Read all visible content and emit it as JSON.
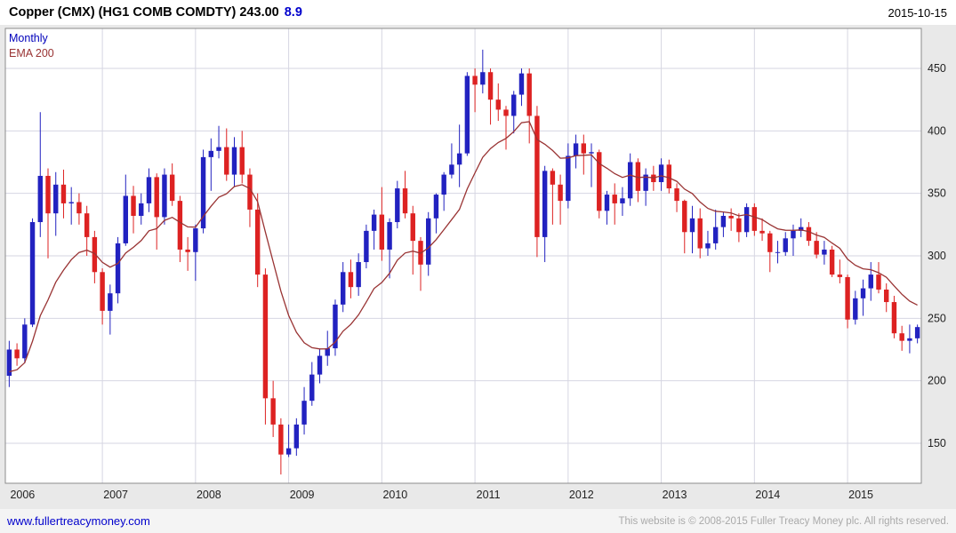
{
  "header": {
    "title": "Copper (CMX) (HG1 COMB COMDTY) 243.00",
    "change": "8.9",
    "date": "2015-10-15"
  },
  "legend": {
    "timeframe": "Monthly",
    "overlay": "EMA 200"
  },
  "footer": {
    "site_link": "www.fullertreacymoney.com",
    "copyright": "This website is © 2008-2015 Fuller Treacy Money plc. All rights reserved."
  },
  "colors": {
    "up": "#2222c0",
    "down": "#dd2222",
    "ema": "#993333",
    "grid": "#d6d6e2",
    "plot_border": "#8c8c8c",
    "axis_text": "#222222",
    "chart_bg": "#e9e9e9",
    "plot_bg": "#ffffff",
    "title_accent": "#0000cc",
    "legend_timeframe": "#0000bb",
    "link": "#0000cc",
    "copyright_text": "#aaaaaa"
  },
  "chart_data": {
    "type": "candlestick",
    "title": "Copper (CMX) (HG1 COMB COMDTY)",
    "last_price": 243.0,
    "change": 8.9,
    "date": "2015-10-15",
    "timeframe": "Monthly",
    "overlay": "EMA 200",
    "ylim": [
      118,
      482
    ],
    "yticks": [
      150,
      200,
      250,
      300,
      350,
      400,
      450
    ],
    "x_years": [
      2006,
      2007,
      2008,
      2009,
      2010,
      2011,
      2012,
      2013,
      2014,
      2015
    ],
    "prev_close": 204,
    "ohlc_fields": [
      "month",
      "open",
      "high",
      "low",
      "close"
    ],
    "ohlc": [
      [
        "2006-01",
        204,
        232,
        195,
        225
      ],
      [
        "2006-02",
        225,
        230,
        212,
        218
      ],
      [
        "2006-03",
        218,
        250,
        214,
        245
      ],
      [
        "2006-04",
        245,
        330,
        243,
        327
      ],
      [
        "2006-05",
        327,
        415,
        315,
        364
      ],
      [
        "2006-06",
        364,
        370,
        298,
        334
      ],
      [
        "2006-07",
        334,
        367,
        316,
        357
      ],
      [
        "2006-08",
        357,
        369,
        330,
        342
      ],
      [
        "2006-09",
        342,
        355,
        325,
        343
      ],
      [
        "2006-10",
        343,
        350,
        325,
        334
      ],
      [
        "2006-11",
        334,
        340,
        300,
        315
      ],
      [
        "2006-12",
        315,
        320,
        278,
        287
      ],
      [
        "2007-01",
        287,
        290,
        245,
        256
      ],
      [
        "2007-02",
        256,
        277,
        237,
        270
      ],
      [
        "2007-03",
        270,
        315,
        262,
        310
      ],
      [
        "2007-04",
        310,
        365,
        308,
        348
      ],
      [
        "2007-05",
        348,
        356,
        318,
        332
      ],
      [
        "2007-06",
        332,
        350,
        325,
        342
      ],
      [
        "2007-07",
        342,
        370,
        335,
        363
      ],
      [
        "2007-08",
        363,
        366,
        305,
        331
      ],
      [
        "2007-09",
        331,
        370,
        325,
        365
      ],
      [
        "2007-10",
        365,
        374,
        340,
        344
      ],
      [
        "2007-11",
        344,
        348,
        295,
        305
      ],
      [
        "2007-12",
        305,
        315,
        288,
        303
      ],
      [
        "2008-01",
        303,
        325,
        280,
        322
      ],
      [
        "2008-02",
        322,
        385,
        318,
        379
      ],
      [
        "2008-03",
        379,
        394,
        352,
        384
      ],
      [
        "2008-04",
        384,
        404,
        378,
        387
      ],
      [
        "2008-05",
        387,
        402,
        360,
        365
      ],
      [
        "2008-06",
        365,
        395,
        355,
        387
      ],
      [
        "2008-07",
        387,
        400,
        358,
        365
      ],
      [
        "2008-08",
        365,
        370,
        323,
        337
      ],
      [
        "2008-09",
        337,
        350,
        275,
        285
      ],
      [
        "2008-10",
        285,
        290,
        165,
        186
      ],
      [
        "2008-11",
        186,
        200,
        155,
        165
      ],
      [
        "2008-12",
        165,
        170,
        125,
        141
      ],
      [
        "2009-01",
        141,
        165,
        139,
        146
      ],
      [
        "2009-02",
        146,
        170,
        140,
        165
      ],
      [
        "2009-03",
        165,
        195,
        157,
        184
      ],
      [
        "2009-04",
        184,
        215,
        180,
        205
      ],
      [
        "2009-05",
        205,
        225,
        198,
        220
      ],
      [
        "2009-06",
        220,
        240,
        212,
        226
      ],
      [
        "2009-07",
        226,
        265,
        220,
        261
      ],
      [
        "2009-08",
        261,
        295,
        255,
        287
      ],
      [
        "2009-09",
        287,
        297,
        266,
        275
      ],
      [
        "2009-10",
        275,
        302,
        268,
        295
      ],
      [
        "2009-11",
        295,
        325,
        290,
        320
      ],
      [
        "2009-12",
        320,
        337,
        305,
        333
      ],
      [
        "2010-01",
        333,
        355,
        296,
        305
      ],
      [
        "2010-02",
        305,
        330,
        282,
        327
      ],
      [
        "2010-03",
        327,
        360,
        322,
        354
      ],
      [
        "2010-04",
        354,
        368,
        330,
        334
      ],
      [
        "2010-05",
        334,
        340,
        285,
        312
      ],
      [
        "2010-06",
        312,
        315,
        272,
        293
      ],
      [
        "2010-07",
        293,
        335,
        284,
        330
      ],
      [
        "2010-08",
        330,
        350,
        318,
        349
      ],
      [
        "2010-09",
        349,
        367,
        336,
        365
      ],
      [
        "2010-10",
        365,
        390,
        362,
        373
      ],
      [
        "2010-11",
        373,
        405,
        355,
        382
      ],
      [
        "2010-12",
        382,
        447,
        380,
        444
      ],
      [
        "2011-01",
        444,
        450,
        415,
        437
      ],
      [
        "2011-02",
        437,
        465,
        430,
        447
      ],
      [
        "2011-03",
        447,
        450,
        405,
        425
      ],
      [
        "2011-04",
        425,
        438,
        408,
        417
      ],
      [
        "2011-05",
        417,
        420,
        385,
        412
      ],
      [
        "2011-06",
        412,
        432,
        398,
        429
      ],
      [
        "2011-07",
        429,
        450,
        420,
        446
      ],
      [
        "2011-08",
        446,
        450,
        390,
        412
      ],
      [
        "2011-09",
        412,
        420,
        299,
        315
      ],
      [
        "2011-10",
        315,
        372,
        295,
        368
      ],
      [
        "2011-11",
        368,
        370,
        325,
        357
      ],
      [
        "2011-12",
        357,
        365,
        325,
        344
      ],
      [
        "2012-01",
        344,
        390,
        338,
        380
      ],
      [
        "2012-02",
        380,
        397,
        370,
        390
      ],
      [
        "2012-03",
        390,
        397,
        365,
        382
      ],
      [
        "2012-04",
        382,
        390,
        355,
        383
      ],
      [
        "2012-05",
        383,
        385,
        330,
        336
      ],
      [
        "2012-06",
        336,
        352,
        325,
        349
      ],
      [
        "2012-07",
        349,
        358,
        325,
        342
      ],
      [
        "2012-08",
        342,
        355,
        332,
        346
      ],
      [
        "2012-09",
        346,
        382,
        340,
        375
      ],
      [
        "2012-10",
        375,
        378,
        343,
        352
      ],
      [
        "2012-11",
        352,
        370,
        340,
        365
      ],
      [
        "2012-12",
        365,
        372,
        352,
        359
      ],
      [
        "2013-01",
        359,
        378,
        352,
        373
      ],
      [
        "2013-02",
        373,
        377,
        350,
        354
      ],
      [
        "2013-03",
        354,
        358,
        335,
        344
      ],
      [
        "2013-04",
        344,
        345,
        302,
        319
      ],
      [
        "2013-05",
        319,
        340,
        302,
        330
      ],
      [
        "2013-06",
        330,
        338,
        298,
        306
      ],
      [
        "2013-07",
        306,
        320,
        300,
        310
      ],
      [
        "2013-08",
        310,
        337,
        305,
        323
      ],
      [
        "2013-09",
        323,
        335,
        315,
        332
      ],
      [
        "2013-10",
        332,
        338,
        320,
        330
      ],
      [
        "2013-11",
        330,
        334,
        311,
        319
      ],
      [
        "2013-12",
        319,
        342,
        315,
        339
      ],
      [
        "2014-01",
        339,
        342,
        316,
        320
      ],
      [
        "2014-02",
        320,
        330,
        312,
        318
      ],
      [
        "2014-03",
        318,
        320,
        287,
        303
      ],
      [
        "2014-04",
        303,
        312,
        294,
        303
      ],
      [
        "2014-05",
        303,
        319,
        300,
        314
      ],
      [
        "2014-06",
        314,
        325,
        300,
        320
      ],
      [
        "2014-07",
        320,
        330,
        315,
        323
      ],
      [
        "2014-08",
        323,
        327,
        308,
        312
      ],
      [
        "2014-09",
        312,
        319,
        298,
        301
      ],
      [
        "2014-10",
        301,
        312,
        293,
        305
      ],
      [
        "2014-11",
        305,
        308,
        283,
        285
      ],
      [
        "2014-12",
        285,
        297,
        278,
        283
      ],
      [
        "2015-01",
        283,
        285,
        242,
        249
      ],
      [
        "2015-02",
        249,
        272,
        245,
        266
      ],
      [
        "2015-03",
        266,
        281,
        252,
        274
      ],
      [
        "2015-04",
        274,
        295,
        264,
        285
      ],
      [
        "2015-05",
        285,
        295,
        270,
        273
      ],
      [
        "2015-06",
        273,
        278,
        255,
        263
      ],
      [
        "2015-07",
        263,
        268,
        234,
        238
      ],
      [
        "2015-08",
        238,
        244,
        224,
        232
      ],
      [
        "2015-09",
        232,
        245,
        222,
        234
      ],
      [
        "2015-10",
        234,
        245,
        230,
        243
      ]
    ]
  }
}
